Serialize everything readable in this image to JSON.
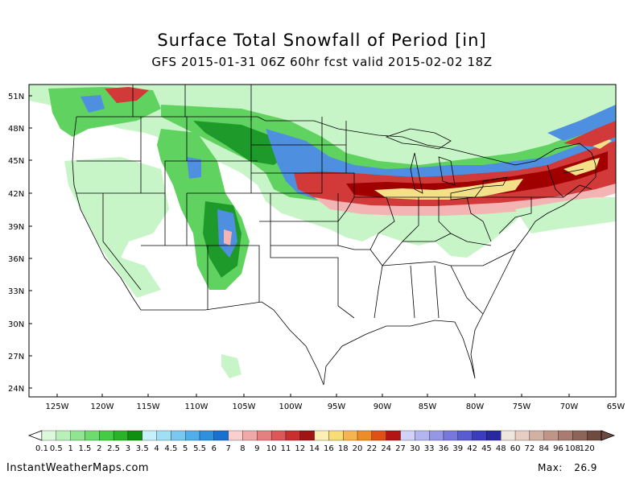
{
  "title": "Surface Total Snowfall of Period [in]",
  "subtitle": "GFS 2015-01-31 06Z 60hr fcst valid 2015-02-02 18Z",
  "map": {
    "lat_labels": [
      "51N",
      "48N",
      "45N",
      "42N",
      "39N",
      "36N",
      "33N",
      "30N",
      "27N",
      "24N"
    ],
    "lon_labels": [
      "125W",
      "120W",
      "115W",
      "110W",
      "105W",
      "100W",
      "95W",
      "90W",
      "85W",
      "80W",
      "75W",
      "70W",
      "65W"
    ],
    "lat_range": [
      23,
      52
    ],
    "lon_range": [
      -128,
      -65
    ],
    "colors": {
      "light_green": "#c8f5c8",
      "green": "#5fd25f",
      "dark_green": "#1e9a2a",
      "light_blue": "#b4e6f5",
      "blue": "#4f8fe0",
      "dark_blue": "#2060c8",
      "pink": "#f5b4b4",
      "red": "#d23a3a",
      "dark_red": "#a00000",
      "yellow": "#f5e08a",
      "orange": "#f0a040"
    }
  },
  "colorbar": {
    "labels": [
      "0.1",
      "0.5",
      "1",
      "1.5",
      "2",
      "2.5",
      "3",
      "3.5",
      "4",
      "4.5",
      "5",
      "5.5",
      "6",
      "7",
      "8",
      "9",
      "10",
      "11",
      "12",
      "14",
      "16",
      "18",
      "20",
      "22",
      "24",
      "27",
      "30",
      "33",
      "36",
      "39",
      "42",
      "45",
      "48",
      "60",
      "72",
      "84",
      "96",
      "108",
      "120"
    ],
    "colors": [
      "#dcf8dc",
      "#b8f0b8",
      "#90e690",
      "#6cdc6c",
      "#44cc44",
      "#28b428",
      "#109010",
      "#c8f0fa",
      "#a0e0f5",
      "#78c8f0",
      "#50aeec",
      "#3090e0",
      "#1870d0",
      "#f8d0d0",
      "#f0a8a8",
      "#e68080",
      "#dc5858",
      "#c83030",
      "#a01414",
      "#faf0b4",
      "#f8dc78",
      "#f5b450",
      "#f08c28",
      "#e05014",
      "#b41414",
      "#d2d2f8",
      "#b4b4f0",
      "#9696e6",
      "#7878dc",
      "#5a5ad2",
      "#3c3cbe",
      "#2828a0",
      "#f0e6e0",
      "#e6cec4",
      "#d2b0a4",
      "#be9688",
      "#a87c70",
      "#8c6458",
      "#6e4a40"
    ]
  },
  "footer": {
    "site": "InstantWeatherMaps.com",
    "max_label": "Max:",
    "max_value": "26.9"
  }
}
